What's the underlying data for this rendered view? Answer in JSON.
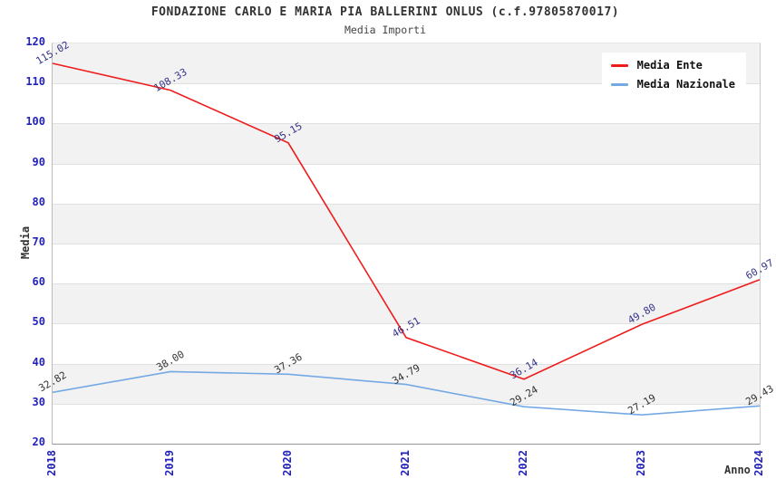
{
  "chart_data": {
    "type": "line",
    "title": "FONDAZIONE CARLO E MARIA PIA BALLERINI ONLUS (c.f.97805870017)",
    "subtitle": "Media Importi",
    "xlabel": "Anno",
    "ylabel": "Media",
    "categories": [
      "2018",
      "2019",
      "2020",
      "2021",
      "2022",
      "2023",
      "2024"
    ],
    "ylim": [
      20,
      120
    ],
    "ytick_step": 10,
    "yticks": [
      "20",
      "30",
      "40",
      "50",
      "60",
      "70",
      "80",
      "90",
      "100",
      "110",
      "120"
    ],
    "grid": "horizontal-gridlines-with-alternating-gray-bands",
    "legend_position": "top-right-inside",
    "tick_color": "#2222bb",
    "band_color": "#f2f2f2",
    "series": [
      {
        "name": "Media Nazionale",
        "color": "#74a9e4",
        "label_color": "#333333",
        "values": [
          32.82,
          38.0,
          37.36,
          34.79,
          29.24,
          27.19,
          29.43
        ],
        "labels": [
          "32.82",
          "38.00",
          "37.36",
          "34.79",
          "29.24",
          "27.19",
          "29.43"
        ]
      },
      {
        "name": "Media Ente",
        "color": "#ee1c1c",
        "label_color": "#333388",
        "values": [
          115.02,
          108.33,
          95.15,
          46.51,
          36.14,
          49.8,
          60.97
        ],
        "labels": [
          "115.02",
          "108.33",
          "95.15",
          "46.51",
          "36.14",
          "49.80",
          "60.97"
        ]
      }
    ]
  }
}
